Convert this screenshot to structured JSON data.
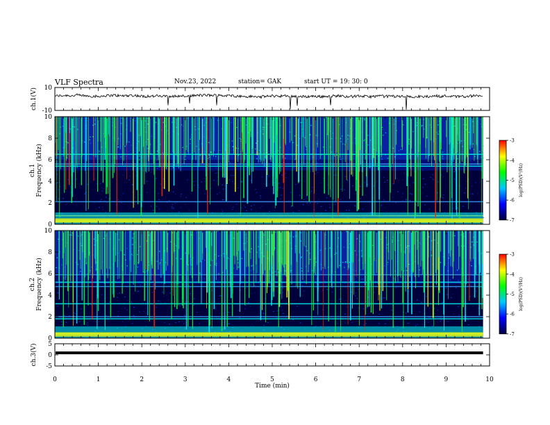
{
  "header": {
    "title": "VLF Spectra",
    "date": "Nov.23, 2022",
    "station": "station= GAK",
    "start": "start UT = 19: 30: 0"
  },
  "colors": {
    "scale": [
      "#000040",
      "#0000ff",
      "#00c8ff",
      "#00ff00",
      "#ffff00",
      "#ff0000"
    ],
    "trace": "#000000"
  },
  "chart_data": [
    {
      "type": "line",
      "name": "ch1-waveform",
      "ylabel": "ch.1(V)",
      "ylim": [
        -10,
        10
      ],
      "y_ticks": [
        "10",
        "-10"
      ],
      "xlim": [
        0,
        10
      ],
      "trace_level_v": 2.5,
      "trace_noise_v": 1.2,
      "trace_end_min": 9.85
    },
    {
      "type": "heatmap",
      "name": "ch1-spectrogram",
      "ylabel_line1": "ch.1",
      "ylabel_line2": "Frequency (kHz)",
      "ylim": [
        0,
        10
      ],
      "y_ticks": [
        "0",
        "2",
        "4",
        "6",
        "8",
        "10"
      ],
      "xlim": [
        0,
        10
      ],
      "colorbar": {
        "label": "log(PSD)(V²/Hz)",
        "range": [
          -7,
          -3
        ],
        "ticks": [
          "-3",
          "-4",
          "-5",
          "-6",
          "-7"
        ]
      },
      "bands_khz": [
        0.3,
        0.8,
        2.1,
        5.4,
        5.6,
        6.5
      ],
      "data_end_min": 9.85
    },
    {
      "type": "heatmap",
      "name": "ch2-spectrogram",
      "ylabel_line1": "ch.2",
      "ylabel_line2": "Frequency (kHz)",
      "ylim": [
        0,
        10
      ],
      "y_ticks": [
        "0",
        "2",
        "4",
        "6",
        "8",
        "10"
      ],
      "xlim": [
        0,
        10
      ],
      "colorbar": {
        "label": "log(PSD)(V²/Hz)",
        "range": [
          -7,
          -3
        ],
        "ticks": [
          "-3",
          "-4",
          "-5",
          "-6",
          "-7"
        ]
      },
      "bands_khz": [
        0.4,
        1.8,
        2.0,
        3.2,
        4.8,
        5.2,
        5.9
      ],
      "data_end_min": 9.85
    },
    {
      "type": "line",
      "name": "ch3-waveform",
      "ylabel": "ch.3(V)",
      "ylim": [
        -5,
        5
      ],
      "y_ticks": [
        "5",
        "0",
        "-5"
      ],
      "xlim": [
        0,
        10
      ],
      "trace_level_v": 0.9,
      "trace_end_min": 9.85,
      "xlabel": "Time (min)",
      "x_ticks": [
        "0",
        "1",
        "2",
        "3",
        "4",
        "5",
        "6",
        "7",
        "8",
        "9",
        "10"
      ]
    }
  ]
}
